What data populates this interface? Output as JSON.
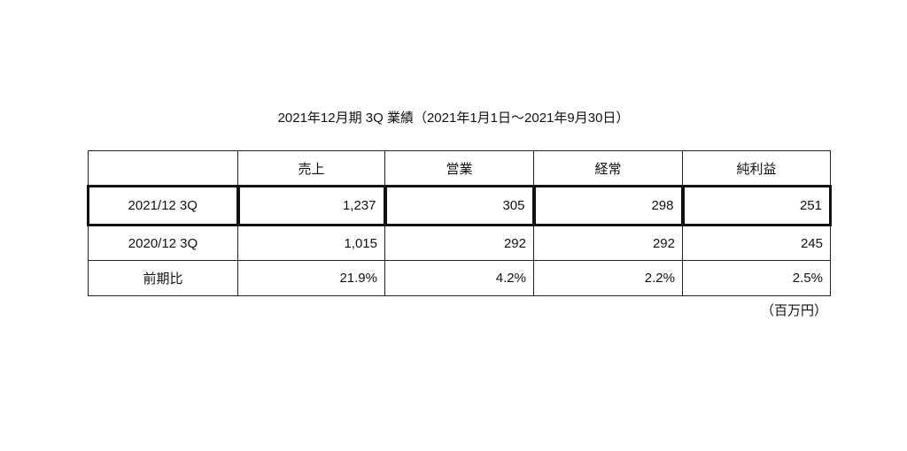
{
  "title": "2021年12月期 3Q 業績（2021年1月1日〜2021年9月30日）",
  "table": {
    "headers": [
      "",
      "売上",
      "営業",
      "経常",
      "純利益"
    ],
    "rows": [
      {
        "label": "2021/12 3Q",
        "values": [
          "1,237",
          "305",
          "298",
          "251"
        ],
        "highlighted": true
      },
      {
        "label": "2020/12 3Q",
        "values": [
          "1,015",
          "292",
          "292",
          "245"
        ]
      },
      {
        "label": "前期比",
        "values": [
          "21.9%",
          "4.2%",
          "2.2%",
          "2.5%"
        ]
      }
    ]
  },
  "unit_note": "（百万円）"
}
